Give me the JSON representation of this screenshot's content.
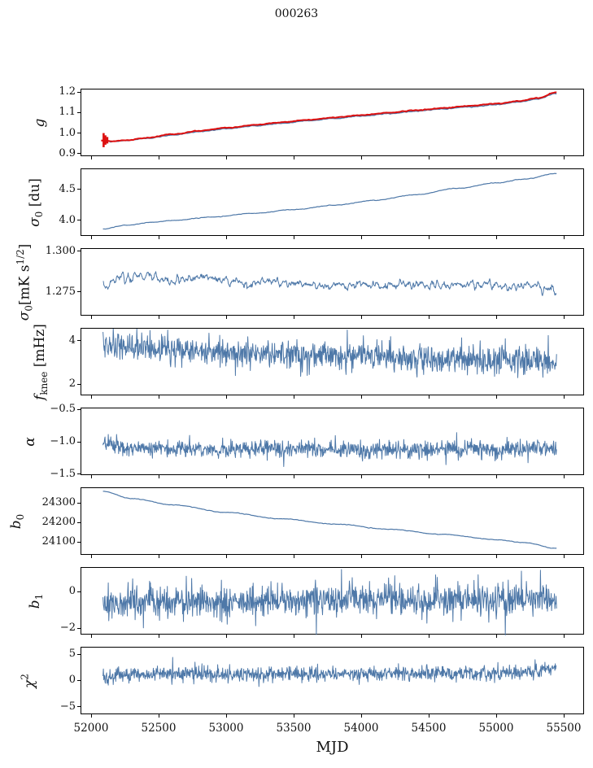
{
  "title": "000263",
  "chart_data": {
    "type": "line",
    "title": "000263",
    "xlabel": "MJD",
    "xlim": [
      51920,
      55650
    ],
    "x_ticks": [
      52000,
      52500,
      53000,
      53500,
      54000,
      54500,
      55000,
      55500
    ],
    "x_tick_labels": [
      "52000",
      "52500",
      "53000",
      "53500",
      "54000",
      "54500",
      "55000",
      "55500"
    ],
    "x_data_range": [
      52080,
      55440
    ],
    "colors": {
      "primary_line": "#4e78a8",
      "overlay_line": "#dd1111",
      "axis": "#000000"
    },
    "legend": "none",
    "grid": false,
    "panels": [
      {
        "id": "g",
        "ylabel": "g",
        "ylim": [
          0.885,
          1.215
        ],
        "yticks": [
          0.9,
          1.0,
          1.1,
          1.2
        ],
        "ytick_labels": [
          "0.9",
          "1.0",
          "1.1",
          "1.2"
        ],
        "series": [
          {
            "name": "gain-fit-blue",
            "color": "#4e78a8",
            "width": 1.4,
            "n": 800,
            "seed": 101,
            "sigma": 0.0009,
            "smooth": 4,
            "trend": [
              [
                52080,
                0.966
              ],
              [
                52150,
                0.961
              ],
              [
                52250,
                0.965
              ],
              [
                52400,
                0.976
              ],
              [
                52600,
                0.993
              ],
              [
                52800,
                1.009
              ],
              [
                53000,
                1.0235
              ],
              [
                53200,
                1.037
              ],
              [
                53400,
                1.05
              ],
              [
                53600,
                1.062
              ],
              [
                53800,
                1.074
              ],
              [
                54000,
                1.086
              ],
              [
                54200,
                1.0975
              ],
              [
                54400,
                1.109
              ],
              [
                54600,
                1.12
              ],
              [
                54800,
                1.1305
              ],
              [
                55000,
                1.1415
              ],
              [
                55150,
                1.153
              ],
              [
                55300,
                1.169
              ],
              [
                55440,
                1.196
              ]
            ]
          },
          {
            "name": "gain-overlay-red",
            "color": "#dd1111",
            "width": 2.0,
            "n": 800,
            "seed": 202,
            "sigma": 0.0008,
            "smooth": 4,
            "trend": [
              [
                52080,
                0.966
              ],
              [
                52150,
                0.9615
              ],
              [
                52250,
                0.967
              ],
              [
                52400,
                0.979
              ],
              [
                52600,
                0.9965
              ],
              [
                52800,
                1.013
              ],
              [
                53000,
                1.028
              ],
              [
                53200,
                1.0415
              ],
              [
                53400,
                1.0545
              ],
              [
                53600,
                1.0665
              ],
              [
                53800,
                1.0785
              ],
              [
                54000,
                1.0905
              ],
              [
                54200,
                1.102
              ],
              [
                54400,
                1.1135
              ],
              [
                54600,
                1.1245
              ],
              [
                54800,
                1.135
              ],
              [
                55000,
                1.146
              ],
              [
                55150,
                1.1575
              ],
              [
                55300,
                1.1735
              ],
              [
                55440,
                1.201
              ]
            ]
          }
        ],
        "errorbars": {
          "color": "#dd1111",
          "bars": [
            [
              52085,
              0.933,
              1.002
            ],
            [
              52098,
              0.945,
              0.991
            ],
            [
              52112,
              0.951,
              0.983
            ]
          ],
          "mean_marker": [
            52085,
            0.9655
          ]
        }
      },
      {
        "id": "sigma0-du",
        "ylabel": "σ_{0} [du]",
        "ylim": [
          3.74,
          4.83
        ],
        "yticks": [
          4.0,
          4.5
        ],
        "ytick_labels": [
          "4.0",
          "4.5"
        ],
        "series": [
          {
            "name": "sigma0-du-line",
            "color": "#4e78a8",
            "width": 1.2,
            "n": 800,
            "seed": 303,
            "sigma": 0.0022,
            "smooth": 4,
            "trend": [
              [
                52080,
                3.868
              ],
              [
                52250,
                3.925
              ],
              [
                52450,
                3.975
              ],
              [
                52600,
                4.005
              ],
              [
                52900,
                4.06
              ],
              [
                53200,
                4.12
              ],
              [
                53500,
                4.18
              ],
              [
                53800,
                4.25
              ],
              [
                54100,
                4.33
              ],
              [
                54400,
                4.42
              ],
              [
                54700,
                4.52
              ],
              [
                55000,
                4.61
              ],
              [
                55200,
                4.67
              ],
              [
                55440,
                4.76
              ]
            ]
          }
        ]
      },
      {
        "id": "sigma0-mks",
        "ylabel": "σ_{0}[mK s^{1/2}]",
        "ylim": [
          1.26,
          1.3015
        ],
        "yticks": [
          1.275,
          1.3
        ],
        "ytick_labels": [
          "1.275",
          "1.300"
        ],
        "series": [
          {
            "name": "sigma0-mks-line",
            "color": "#4e78a8",
            "width": 1.0,
            "n": 1100,
            "seed": 404,
            "sigma": 0.0014,
            "smooth": 5,
            "trend": [
              [
                52080,
                1.278
              ],
              [
                52180,
                1.2825
              ],
              [
                52300,
                1.2845
              ],
              [
                52420,
                1.2855
              ],
              [
                52550,
                1.2815
              ],
              [
                52700,
                1.283
              ],
              [
                52850,
                1.284
              ],
              [
                53000,
                1.282
              ],
              [
                53150,
                1.28
              ],
              [
                53300,
                1.282
              ],
              [
                53500,
                1.28
              ],
              [
                53700,
                1.279
              ],
              [
                53900,
                1.28
              ],
              [
                54100,
                1.279
              ],
              [
                54300,
                1.28
              ],
              [
                54500,
                1.279
              ],
              [
                54700,
                1.2795
              ],
              [
                54900,
                1.28
              ],
              [
                55100,
                1.278
              ],
              [
                55250,
                1.2795
              ],
              [
                55380,
                1.276
              ],
              [
                55440,
                1.273
              ]
            ]
          }
        ]
      },
      {
        "id": "fknee",
        "ylabel": "f_{knee} [mHz]",
        "ylim": [
          1.48,
          4.56
        ],
        "yticks": [
          2,
          4
        ],
        "ytick_labels": [
          "2",
          "4"
        ],
        "series": [
          {
            "name": "fknee-line",
            "color": "#4e78a8",
            "width": 1.0,
            "n": 1100,
            "seed": 505,
            "sigma": 0.32,
            "smooth": 1,
            "trend": [
              [
                52080,
                3.85
              ],
              [
                52300,
                3.65
              ],
              [
                52500,
                3.6
              ],
              [
                52800,
                3.55
              ],
              [
                53100,
                3.42
              ],
              [
                53500,
                3.38
              ],
              [
                54000,
                3.28
              ],
              [
                54500,
                3.18
              ],
              [
                55000,
                3.1
              ],
              [
                55440,
                3.02
              ]
            ],
            "spikes": [
              [
                52330,
                4.55
              ],
              [
                52430,
                4.48
              ],
              [
                52560,
                4.5
              ],
              [
                53060,
                2.42
              ],
              [
                53890,
                4.5
              ],
              [
                54210,
                4.2
              ],
              [
                54780,
                2.45
              ],
              [
                55060,
                4.1
              ],
              [
                55380,
                4.25
              ]
            ]
          }
        ]
      },
      {
        "id": "alpha",
        "ylabel": "α",
        "ylim": [
          -1.525,
          -0.475
        ],
        "yticks": [
          -0.5,
          -1.0,
          -1.5
        ],
        "ytick_labels": [
          "−0.5",
          "−1.0",
          "−1.5"
        ],
        "series": [
          {
            "name": "alpha-line",
            "color": "#4e78a8",
            "width": 1.0,
            "n": 1100,
            "seed": 606,
            "sigma": 0.065,
            "smooth": 1,
            "trend": [
              [
                52080,
                -1.04
              ],
              [
                52300,
                -1.09
              ],
              [
                52600,
                -1.1
              ],
              [
                53000,
                -1.11
              ],
              [
                53500,
                -1.1
              ],
              [
                54000,
                -1.12
              ],
              [
                54500,
                -1.1
              ],
              [
                55000,
                -1.11
              ],
              [
                55440,
                -1.09
              ]
            ],
            "spikes": [
              [
                52180,
                -0.88
              ],
              [
                53420,
                -1.38
              ],
              [
                54620,
                -1.35
              ],
              [
                55230,
                -1.32
              ]
            ]
          }
        ]
      },
      {
        "id": "b0",
        "ylabel": "b_{0}",
        "ylim": [
          24033,
          24379
        ],
        "yticks": [
          24100,
          24200,
          24300
        ],
        "ytick_labels": [
          "24100",
          "24200",
          "24300"
        ],
        "series": [
          {
            "name": "b0-line",
            "color": "#4e78a8",
            "width": 1.2,
            "n": 800,
            "seed": 707,
            "sigma": 0.7,
            "smooth": 4,
            "trend": [
              [
                52080,
                24362
              ],
              [
                52300,
                24325
              ],
              [
                52600,
                24293
              ],
              [
                53000,
                24255
              ],
              [
                53400,
                24222
              ],
              [
                53800,
                24195
              ],
              [
                54200,
                24168
              ],
              [
                54600,
                24142
              ],
              [
                55000,
                24115
              ],
              [
                55200,
                24100
              ],
              [
                55440,
                24070
              ]
            ]
          }
        ]
      },
      {
        "id": "b1",
        "ylabel": "b_{1}",
        "ylim": [
          -2.36,
          1.33
        ],
        "yticks": [
          0,
          -2
        ],
        "ytick_labels": [
          "0",
          "−2"
        ],
        "series": [
          {
            "name": "b1-line",
            "color": "#4e78a8",
            "width": 1.0,
            "n": 1100,
            "seed": 808,
            "sigma": 0.43,
            "smooth": 1,
            "trend": [
              [
                52080,
                -0.55
              ],
              [
                52500,
                -0.5
              ],
              [
                53000,
                -0.48
              ],
              [
                53500,
                -0.45
              ],
              [
                54000,
                -0.42
              ],
              [
                54500,
                -0.4
              ],
              [
                55000,
                -0.42
              ],
              [
                55440,
                -0.35
              ]
            ],
            "spikes": [
              [
                52380,
                -1.95
              ],
              [
                53000,
                -1.75
              ],
              [
                53660,
                -2.32
              ],
              [
                54240,
                0.9
              ],
              [
                54860,
                0.95
              ],
              [
                55060,
                -2.35
              ],
              [
                55180,
                1.15
              ],
              [
                55320,
                1.2
              ]
            ]
          }
        ]
      },
      {
        "id": "chi2",
        "ylabel": "χ^{2}",
        "ylim": [
          -6.56,
          6.4
        ],
        "yticks": [
          5,
          0,
          -5
        ],
        "ytick_labels": [
          "5",
          "0",
          "−5"
        ],
        "series": [
          {
            "name": "chi2-line",
            "color": "#4e78a8",
            "width": 1.0,
            "n": 1100,
            "seed": 909,
            "sigma": 0.72,
            "smooth": 1,
            "trend": [
              [
                52080,
                0.6
              ],
              [
                52300,
                1.3
              ],
              [
                52700,
                1.5
              ],
              [
                53000,
                1.2
              ],
              [
                53400,
                1.45
              ],
              [
                53800,
                1.25
              ],
              [
                54200,
                1.4
              ],
              [
                54600,
                1.5
              ],
              [
                55000,
                1.55
              ],
              [
                55250,
                1.8
              ],
              [
                55440,
                2.7
              ]
            ],
            "spikes": [
              [
                52120,
                -0.8
              ],
              [
                55430,
                3.3
              ]
            ]
          }
        ]
      }
    ]
  }
}
